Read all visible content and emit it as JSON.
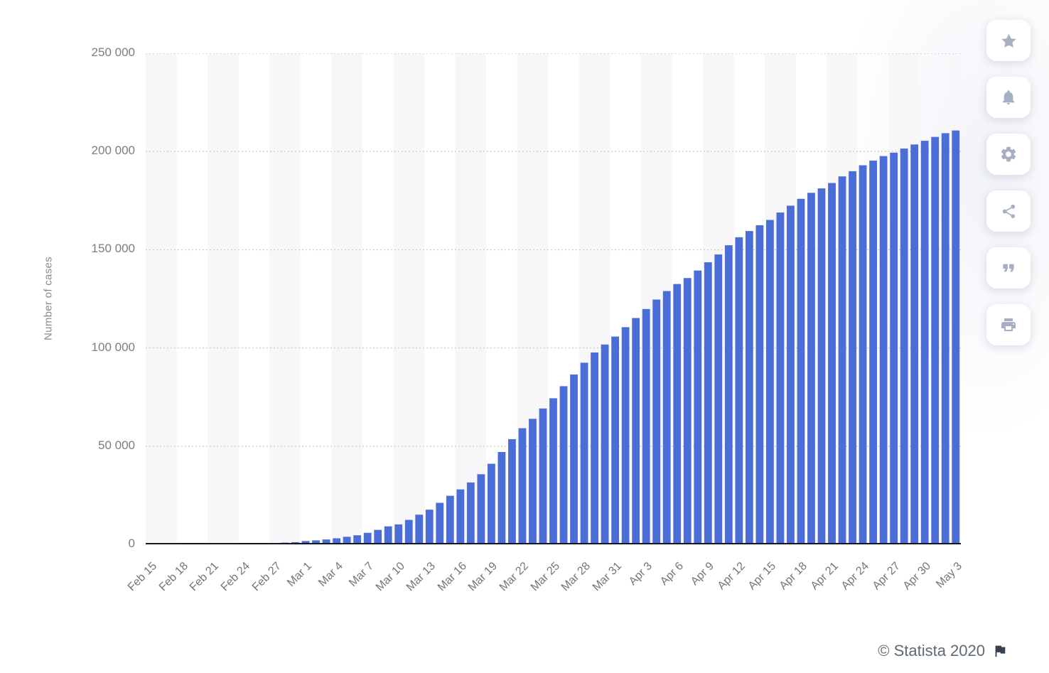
{
  "chart_data": {
    "type": "bar",
    "title": "",
    "xlabel": "",
    "ylabel": "Number of cases",
    "ylim": [
      0,
      250000
    ],
    "y_ticks": [
      0,
      50000,
      100000,
      150000,
      200000,
      250000
    ],
    "y_tick_labels": [
      "0",
      "50 000",
      "100 000",
      "150 000",
      "200 000",
      "250 000"
    ],
    "x_tick_every": 3,
    "grid": "dotted-horizontal",
    "legend": null,
    "bar_color": "#4b6dd8",
    "categories": [
      "Feb 15",
      "Feb 16",
      "Feb 17",
      "Feb 18",
      "Feb 19",
      "Feb 20",
      "Feb 21",
      "Feb 22",
      "Feb 23",
      "Feb 24",
      "Feb 25",
      "Feb 26",
      "Feb 27",
      "Feb 28",
      "Feb 29",
      "Mar 1",
      "Mar 2",
      "Mar 3",
      "Mar 4",
      "Mar 5",
      "Mar 6",
      "Mar 7",
      "Mar 8",
      "Mar 9",
      "Mar 10",
      "Mar 11",
      "Mar 12",
      "Mar 13",
      "Mar 14",
      "Mar 15",
      "Mar 16",
      "Mar 17",
      "Mar 18",
      "Mar 19",
      "Mar 20",
      "Mar 21",
      "Mar 22",
      "Mar 23",
      "Mar 24",
      "Mar 25",
      "Mar 26",
      "Mar 27",
      "Mar 28",
      "Mar 29",
      "Mar 30",
      "Mar 31",
      "Apr 1",
      "Apr 2",
      "Apr 3",
      "Apr 4",
      "Apr 5",
      "Apr 6",
      "Apr 7",
      "Apr 8",
      "Apr 9",
      "Apr 10",
      "Apr 11",
      "Apr 12",
      "Apr 13",
      "Apr 14",
      "Apr 15",
      "Apr 16",
      "Apr 17",
      "Apr 18",
      "Apr 19",
      "Apr 20",
      "Apr 21",
      "Apr 22",
      "Apr 23",
      "Apr 24",
      "Apr 25",
      "Apr 26",
      "Apr 27",
      "Apr 28",
      "Apr 29",
      "Apr 30",
      "May 1",
      "May 2",
      "May 3"
    ],
    "values": [
      3,
      3,
      3,
      3,
      3,
      4,
      21,
      79,
      157,
      229,
      323,
      470,
      655,
      889,
      1128,
      1701,
      2036,
      2502,
      3089,
      3858,
      4636,
      5883,
      7375,
      9172,
      10149,
      12462,
      15113,
      17660,
      21157,
      24747,
      27980,
      31506,
      35713,
      41035,
      47021,
      53578,
      59138,
      63927,
      69176,
      74386,
      80539,
      86498,
      92472,
      97689,
      101739,
      105792,
      110574,
      115242,
      119827,
      124632,
      128948,
      132547,
      135586,
      139422,
      143626,
      147577,
      152271,
      156363,
      159516,
      162488,
      165155,
      168941,
      172434,
      175925,
      178972,
      181228,
      183957,
      187327,
      189973,
      192994,
      195351,
      197675,
      199414,
      201505,
      203591,
      205463,
      207428,
      209328,
      210717
    ]
  },
  "toolbar": {
    "icons": [
      "star-icon",
      "bell-icon",
      "gear-icon",
      "share-icon",
      "quote-icon",
      "print-icon"
    ]
  },
  "footer": {
    "copyright": "© Statista 2020"
  }
}
